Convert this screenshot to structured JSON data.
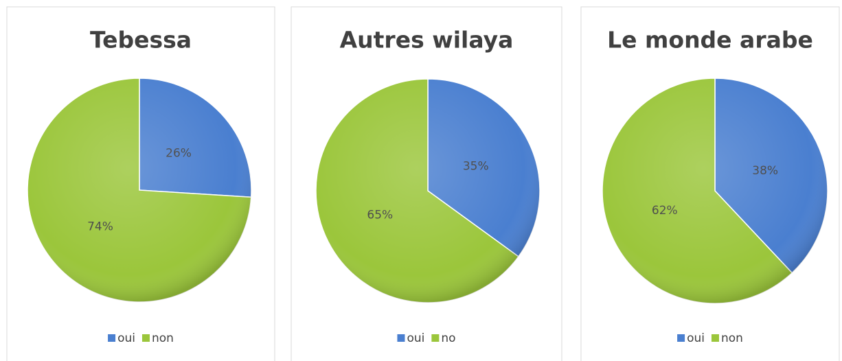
{
  "chart_data": [
    {
      "type": "pie",
      "title": "Tebessa",
      "categories": [
        "oui",
        "non"
      ],
      "values": [
        26,
        74
      ],
      "value_labels": [
        "26%",
        "74%"
      ],
      "colors": [
        "#4a7fd0",
        "#9bc63b"
      ]
    },
    {
      "type": "pie",
      "title": "Autres wilaya",
      "categories": [
        "oui",
        "no"
      ],
      "values": [
        35,
        65
      ],
      "value_labels": [
        "35%",
        "65%"
      ],
      "colors": [
        "#4a7fd0",
        "#9bc63b"
      ]
    },
    {
      "type": "pie",
      "title": "Le monde arabe",
      "categories": [
        "oui",
        "non"
      ],
      "values": [
        38,
        62
      ],
      "value_labels": [
        "38%",
        "62%"
      ],
      "colors": [
        "#4a7fd0",
        "#9bc63b"
      ]
    }
  ]
}
